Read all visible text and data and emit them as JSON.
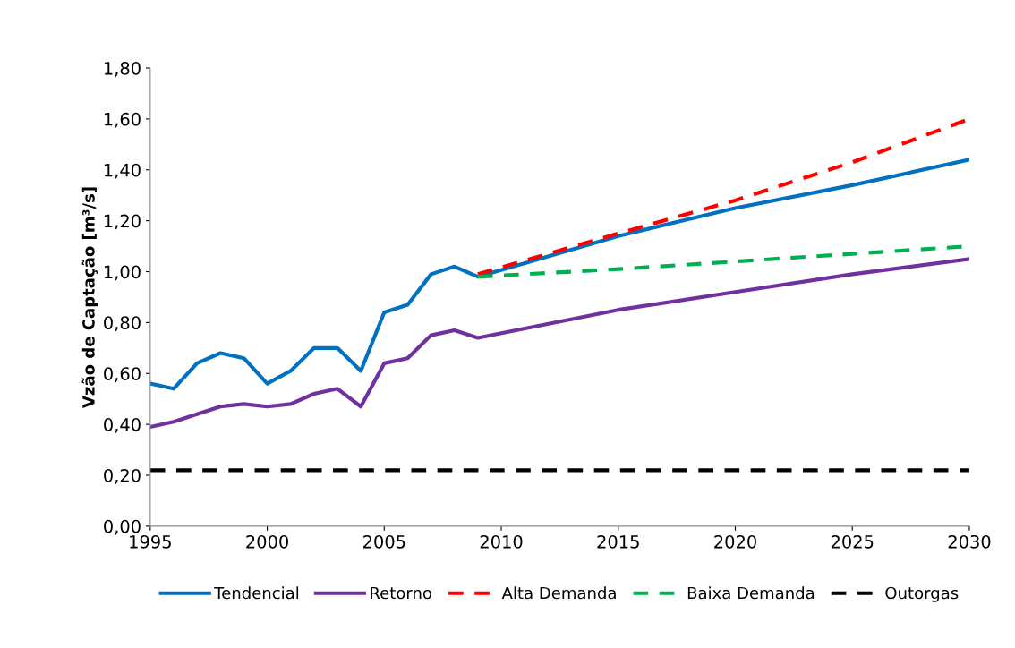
{
  "chart_data": {
    "type": "line",
    "ylabel": "Vzão de Captação [m³/s]",
    "xlim": [
      1995,
      2030
    ],
    "xticks": [
      1995,
      2000,
      2005,
      2010,
      2015,
      2020,
      2025,
      2030
    ],
    "ylim": [
      0,
      1.8
    ],
    "yticks": [
      {
        "value": 0,
        "label": "0,00"
      },
      {
        "value": 0.2,
        "label": "0,20"
      },
      {
        "value": 0.4,
        "label": "0,40"
      },
      {
        "value": 0.6,
        "label": "0,60"
      },
      {
        "value": 0.8,
        "label": "0,80"
      },
      {
        "value": 1.0,
        "label": "1,00"
      },
      {
        "value": 1.2,
        "label": "1,20"
      },
      {
        "value": 1.4,
        "label": "1,40"
      },
      {
        "value": 1.6,
        "label": "1,60"
      },
      {
        "value": 1.8,
        "label": "1,80"
      }
    ],
    "grid": false,
    "legend": "bottom",
    "marker": "none",
    "series": [
      {
        "name": "Tendencial",
        "color": "#0070c0",
        "line_style": "solid",
        "x": [
          1995,
          1996,
          1997,
          1998,
          1999,
          2000,
          2001,
          2002,
          2003,
          2004,
          2005,
          2006,
          2007,
          2008,
          2009,
          2015,
          2020,
          2025,
          2030
        ],
        "values": [
          0.56,
          0.54,
          0.64,
          0.68,
          0.66,
          0.56,
          0.61,
          0.7,
          0.7,
          0.61,
          0.84,
          0.87,
          0.99,
          1.02,
          0.98,
          1.14,
          1.25,
          1.34,
          1.44
        ]
      },
      {
        "name": "Retorno",
        "color": "#7030a0",
        "line_style": "solid",
        "x": [
          1995,
          1996,
          1997,
          1998,
          1999,
          2000,
          2001,
          2002,
          2003,
          2004,
          2005,
          2006,
          2007,
          2008,
          2009,
          2015,
          2020,
          2025,
          2030
        ],
        "values": [
          0.39,
          0.41,
          0.44,
          0.47,
          0.48,
          0.47,
          0.48,
          0.52,
          0.54,
          0.47,
          0.64,
          0.66,
          0.75,
          0.77,
          0.74,
          0.85,
          0.92,
          0.99,
          1.05
        ]
      },
      {
        "name": "Alta Demanda",
        "color": "#ff0000",
        "line_style": "dashed",
        "x": [
          2009,
          2015,
          2020,
          2025,
          2030
        ],
        "values": [
          0.99,
          1.15,
          1.28,
          1.43,
          1.6
        ]
      },
      {
        "name": "Baixa Demanda",
        "color": "#00b050",
        "line_style": "dashed",
        "x": [
          2009,
          2015,
          2020,
          2025,
          2030
        ],
        "values": [
          0.98,
          1.01,
          1.04,
          1.07,
          1.1
        ]
      },
      {
        "name": "Outorgas",
        "color": "#000000",
        "line_style": "dashed",
        "x": [
          1995,
          2030
        ],
        "values": [
          0.22,
          0.22
        ]
      }
    ]
  }
}
